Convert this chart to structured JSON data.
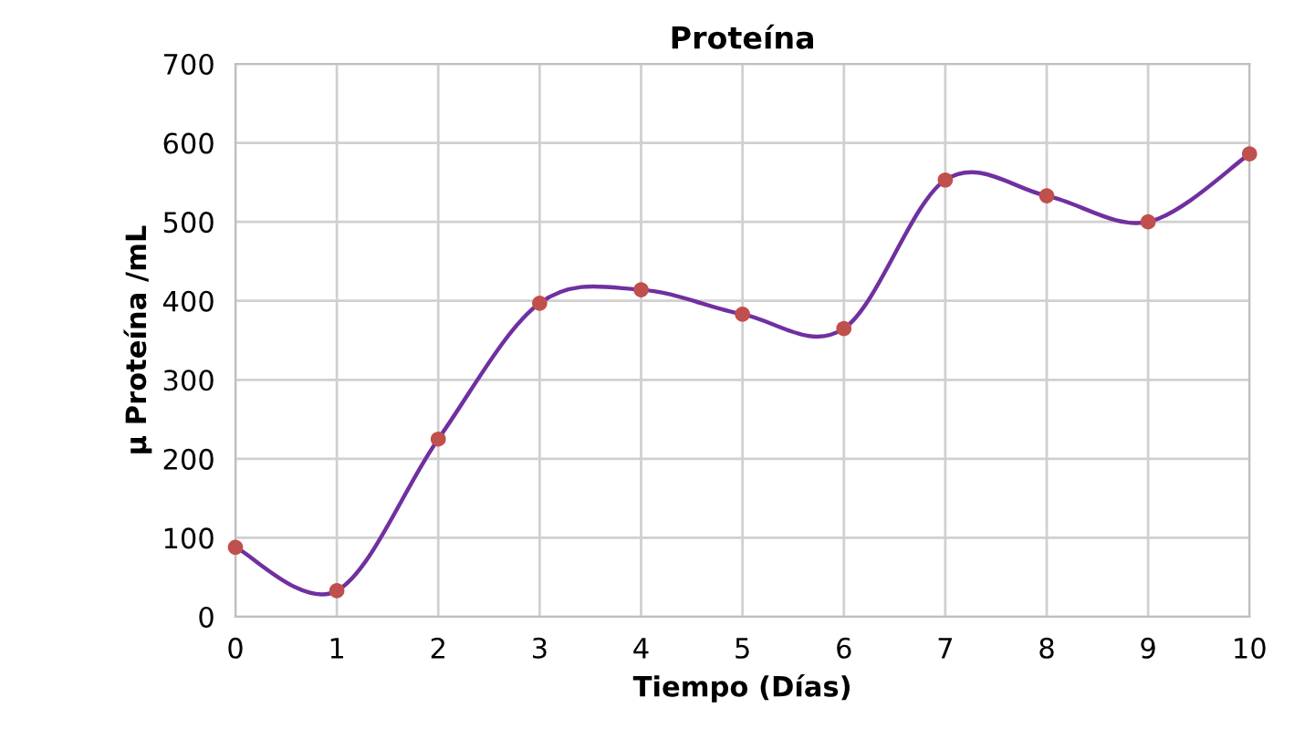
{
  "chart_data": {
    "type": "line",
    "title": "Proteína",
    "xlabel": "Tiempo (Días)",
    "ylabel": "µ Proteína /mL",
    "x": [
      0,
      1,
      2,
      3,
      4,
      5,
      6,
      7,
      8,
      9,
      10
    ],
    "series": [
      {
        "color": "#7030a0",
        "colors": [
          "#c0504d",
          "#c0504d",
          "#c0504d",
          "#c0504d",
          "#c0504d",
          "#c0504d",
          "#c0504d",
          "#c0504d",
          "#c0504d",
          "#c0504d",
          "#c0504d"
        ],
        "values": [
          88,
          33,
          225,
          397,
          414,
          383,
          365,
          553,
          533,
          500,
          586
        ]
      }
    ],
    "xlim": [
      0,
      10
    ],
    "xticks": [
      0,
      1,
      2,
      3,
      4,
      5,
      6,
      7,
      8,
      9,
      10
    ],
    "ylim": [
      0,
      700
    ],
    "yticks": [
      0,
      100,
      200,
      300,
      400,
      500,
      600,
      700
    ],
    "grid": true,
    "marker": "circle",
    "line_style": "solid"
  }
}
